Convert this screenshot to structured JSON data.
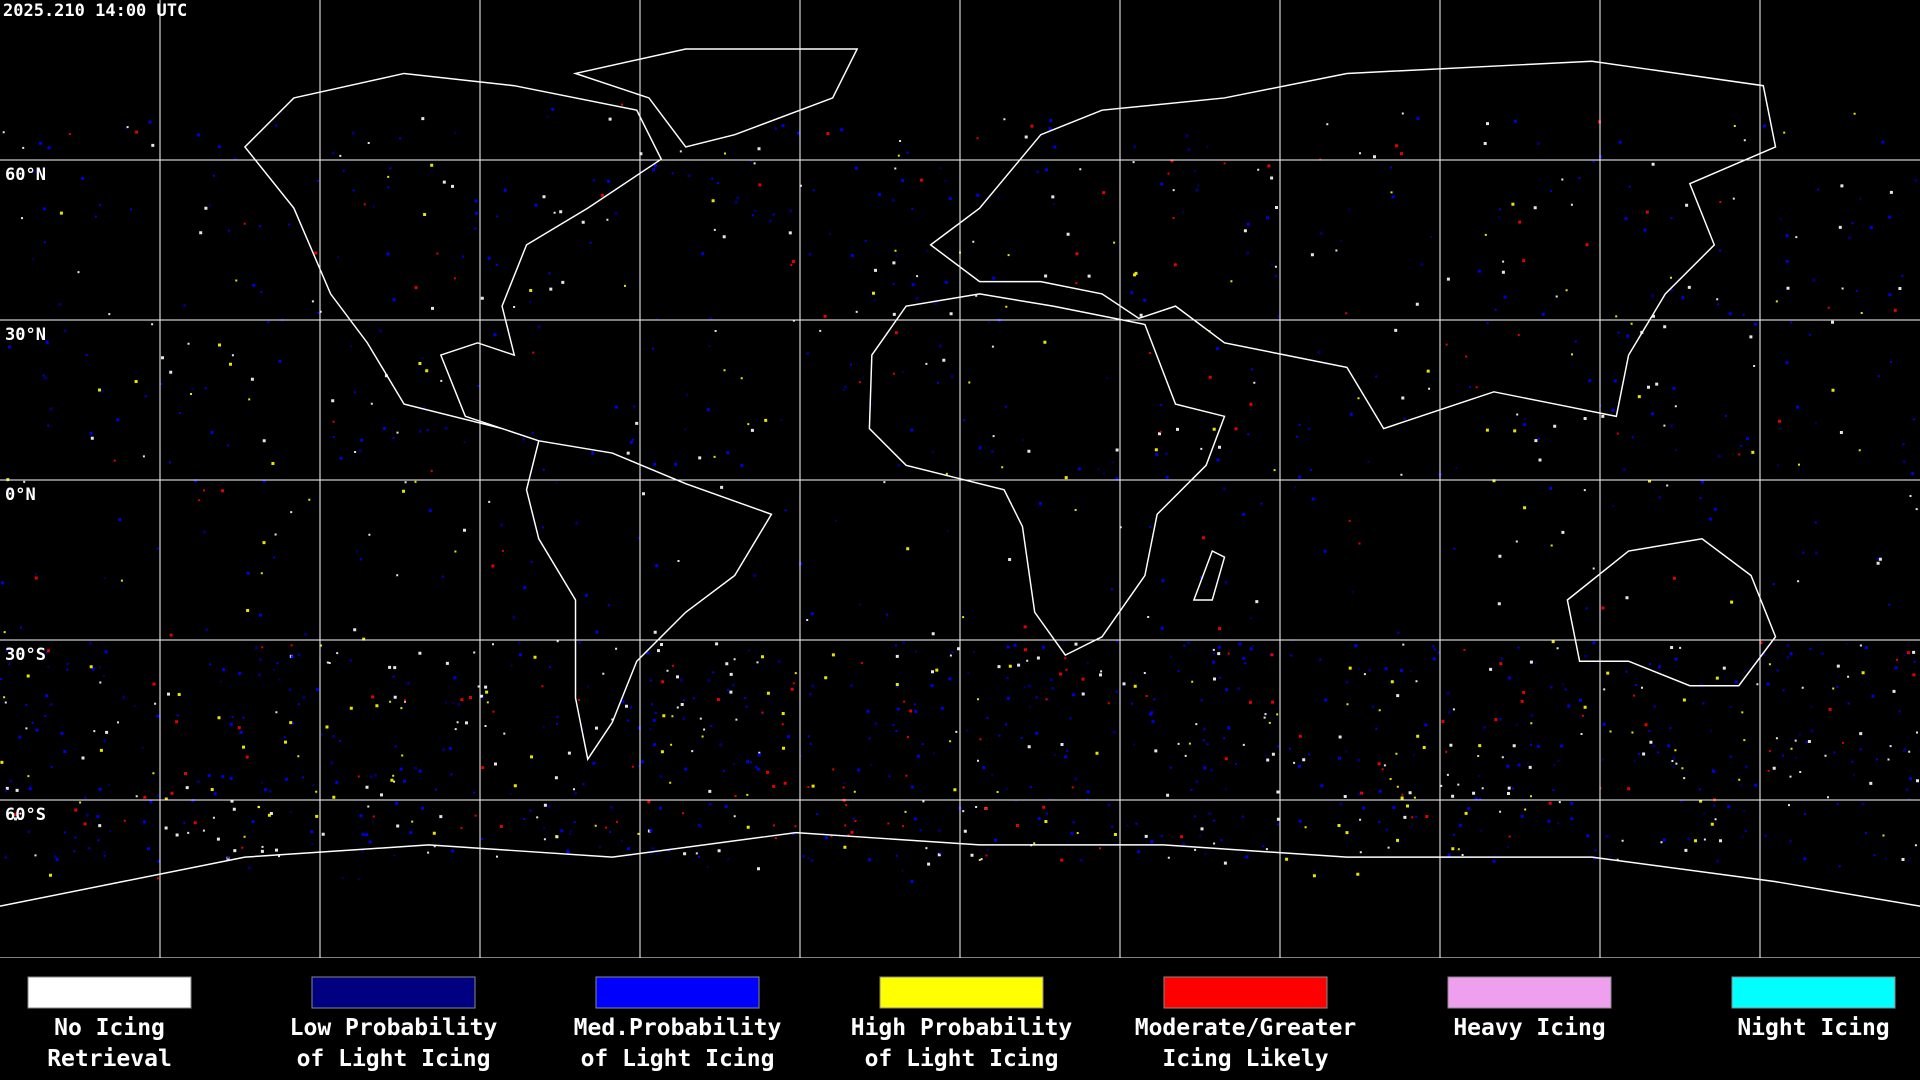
{
  "header": {
    "timestamp": "2025.210 14:00 UTC"
  },
  "map": {
    "latitude_labels": [
      "60°N",
      "30°N",
      "0°N",
      "30°S",
      "60°S"
    ]
  },
  "legend": [
    {
      "color": "#ffffff",
      "line1": "No Icing",
      "line2": "Retrieval"
    },
    {
      "color": "#000080",
      "line1": "Low Probability",
      "line2": "of Light Icing"
    },
    {
      "color": "#0000ff",
      "line1": "Med.Probability",
      "line2": "of Light Icing"
    },
    {
      "color": "#ffff00",
      "line1": "High Probability",
      "line2": "of Light Icing"
    },
    {
      "color": "#ff0000",
      "line1": "Moderate/Greater",
      "line2": "Icing Likely"
    },
    {
      "color": "#ee9fee",
      "line1": "Heavy Icing",
      "line2": null
    },
    {
      "color": "#00ffff",
      "line1": "Night Icing",
      "line2": null
    }
  ]
}
